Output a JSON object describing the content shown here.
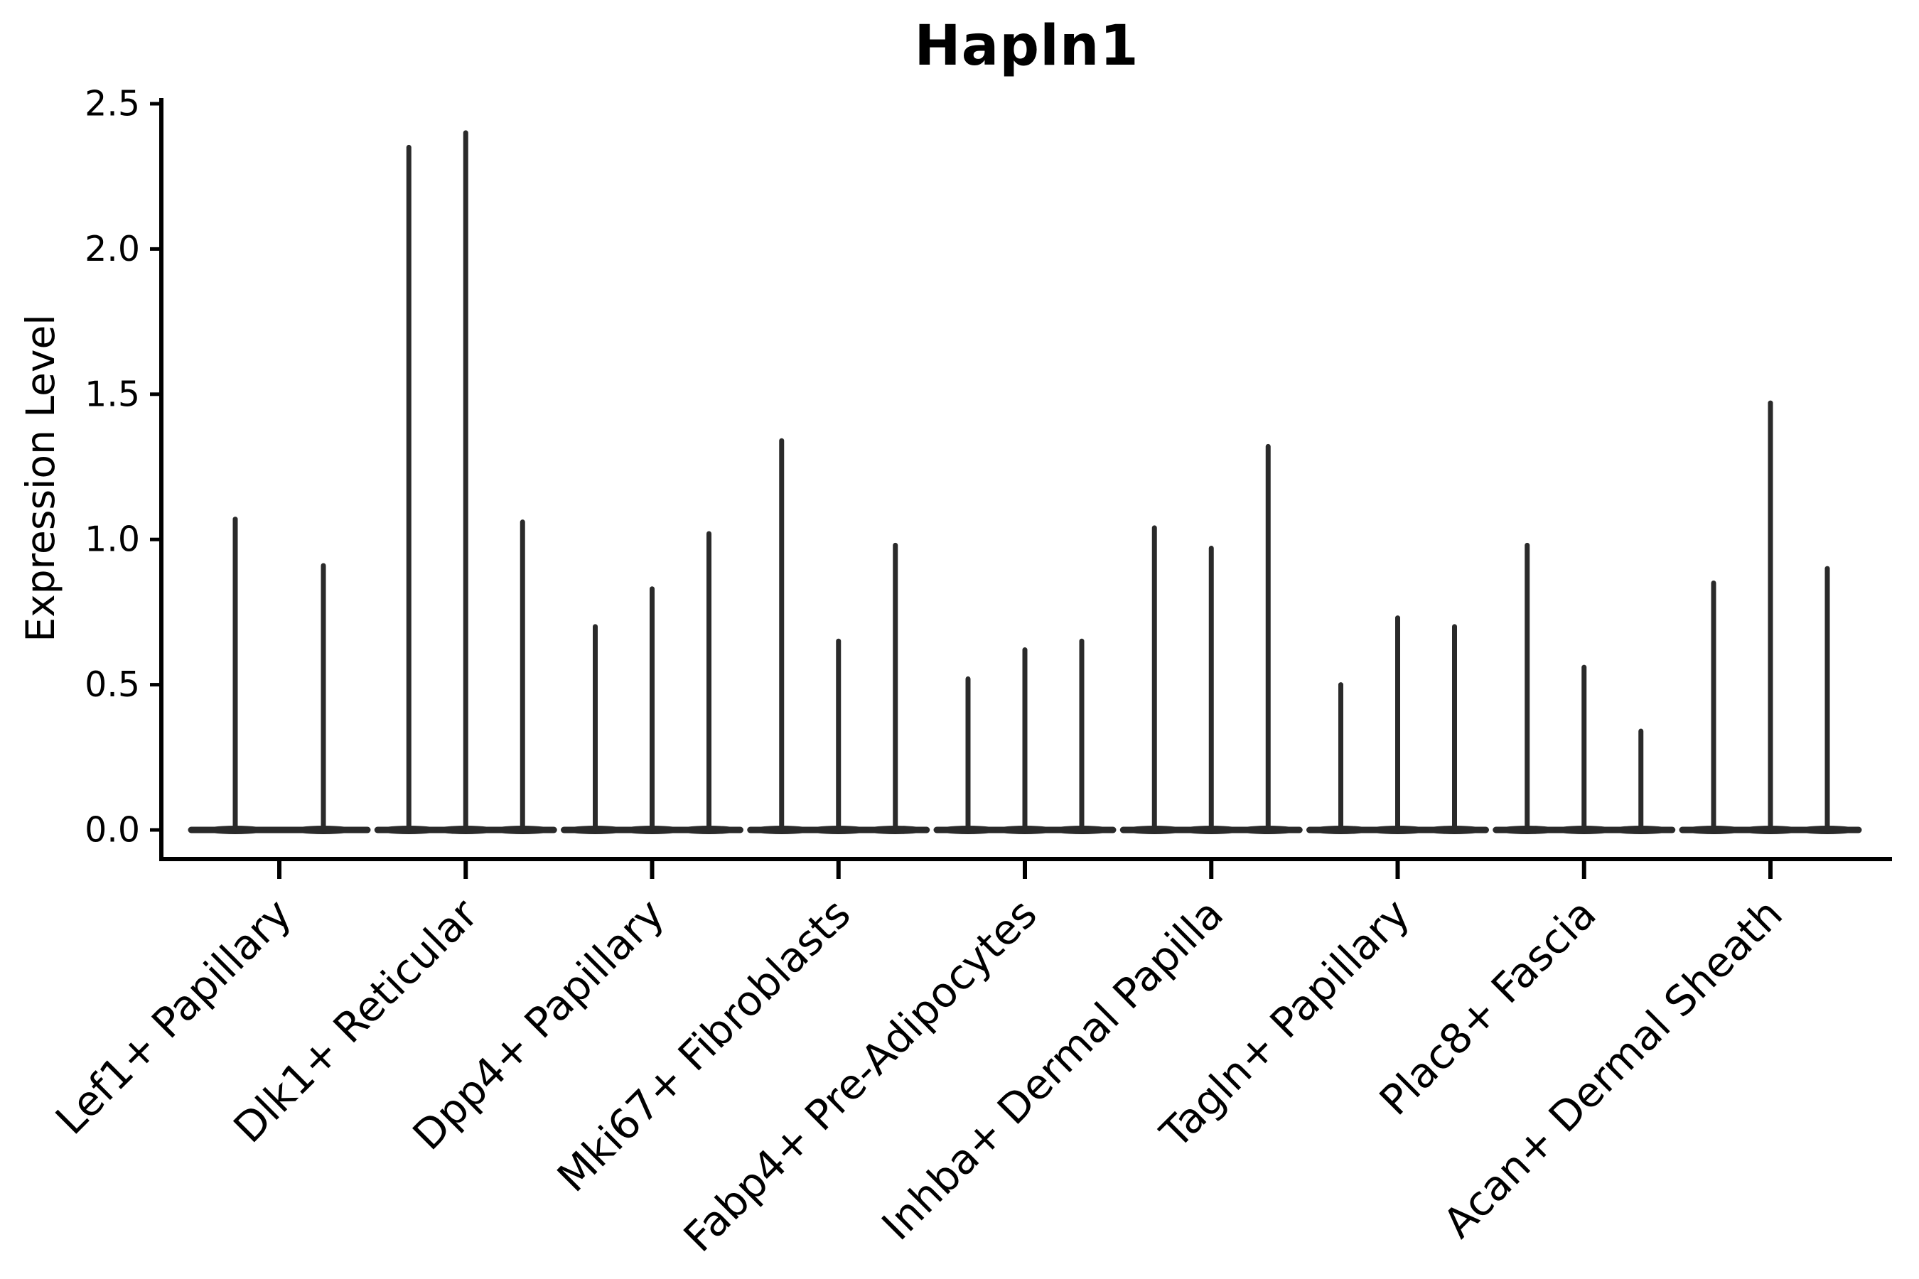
{
  "chart_data": {
    "type": "violin",
    "title": "Hapln1",
    "ylabel": "Expression Level",
    "xlabel": "",
    "ylim": [
      0,
      2.5
    ],
    "yticks": [
      "0.0",
      "0.5",
      "1.0",
      "1.5",
      "2.0",
      "2.5"
    ],
    "grid": false,
    "legend_position": "none",
    "categories": [
      "Lef1+ Papillary",
      "Dlk1+ Reticular",
      "Dpp4+ Papillary",
      "Mki67+ Fibroblasts",
      "Fabp4+ Pre-Adipocytes",
      "Inhba+ Dermal Papilla",
      "Tagln+ Papillary",
      "Plac8+ Fascia",
      "Acan+ Dermal Sheath"
    ],
    "series": [
      {
        "category": "Lef1+ Papillary",
        "violin_peaks": [
          1.07,
          0.91
        ]
      },
      {
        "category": "Dlk1+ Reticular",
        "violin_peaks": [
          2.35,
          2.4,
          1.06
        ]
      },
      {
        "category": "Dpp4+ Papillary",
        "violin_peaks": [
          0.7,
          0.83,
          1.02
        ]
      },
      {
        "category": "Mki67+ Fibroblasts",
        "violin_peaks": [
          1.34,
          0.65,
          0.98
        ]
      },
      {
        "category": "Fabp4+ Pre-Adipocytes",
        "violin_peaks": [
          0.52,
          0.62,
          0.65
        ]
      },
      {
        "category": "Inhba+ Dermal Papilla",
        "violin_peaks": [
          1.04,
          0.97,
          1.32
        ]
      },
      {
        "category": "Tagln+ Papillary",
        "violin_peaks": [
          0.5,
          0.73,
          0.7
        ]
      },
      {
        "category": "Plac8+ Fascia",
        "violin_peaks": [
          0.98,
          0.56,
          0.34
        ]
      },
      {
        "category": "Acan+ Dermal Sheath",
        "violin_peaks": [
          0.85,
          1.47,
          0.9
        ]
      }
    ],
    "annotation": "Narrow violins rising from a flat base at expression 0; spike tip = maximum expression per violin"
  },
  "colors": {
    "background": "#ffffff",
    "ink": "#000000",
    "violin": "#2a2a2a"
  }
}
